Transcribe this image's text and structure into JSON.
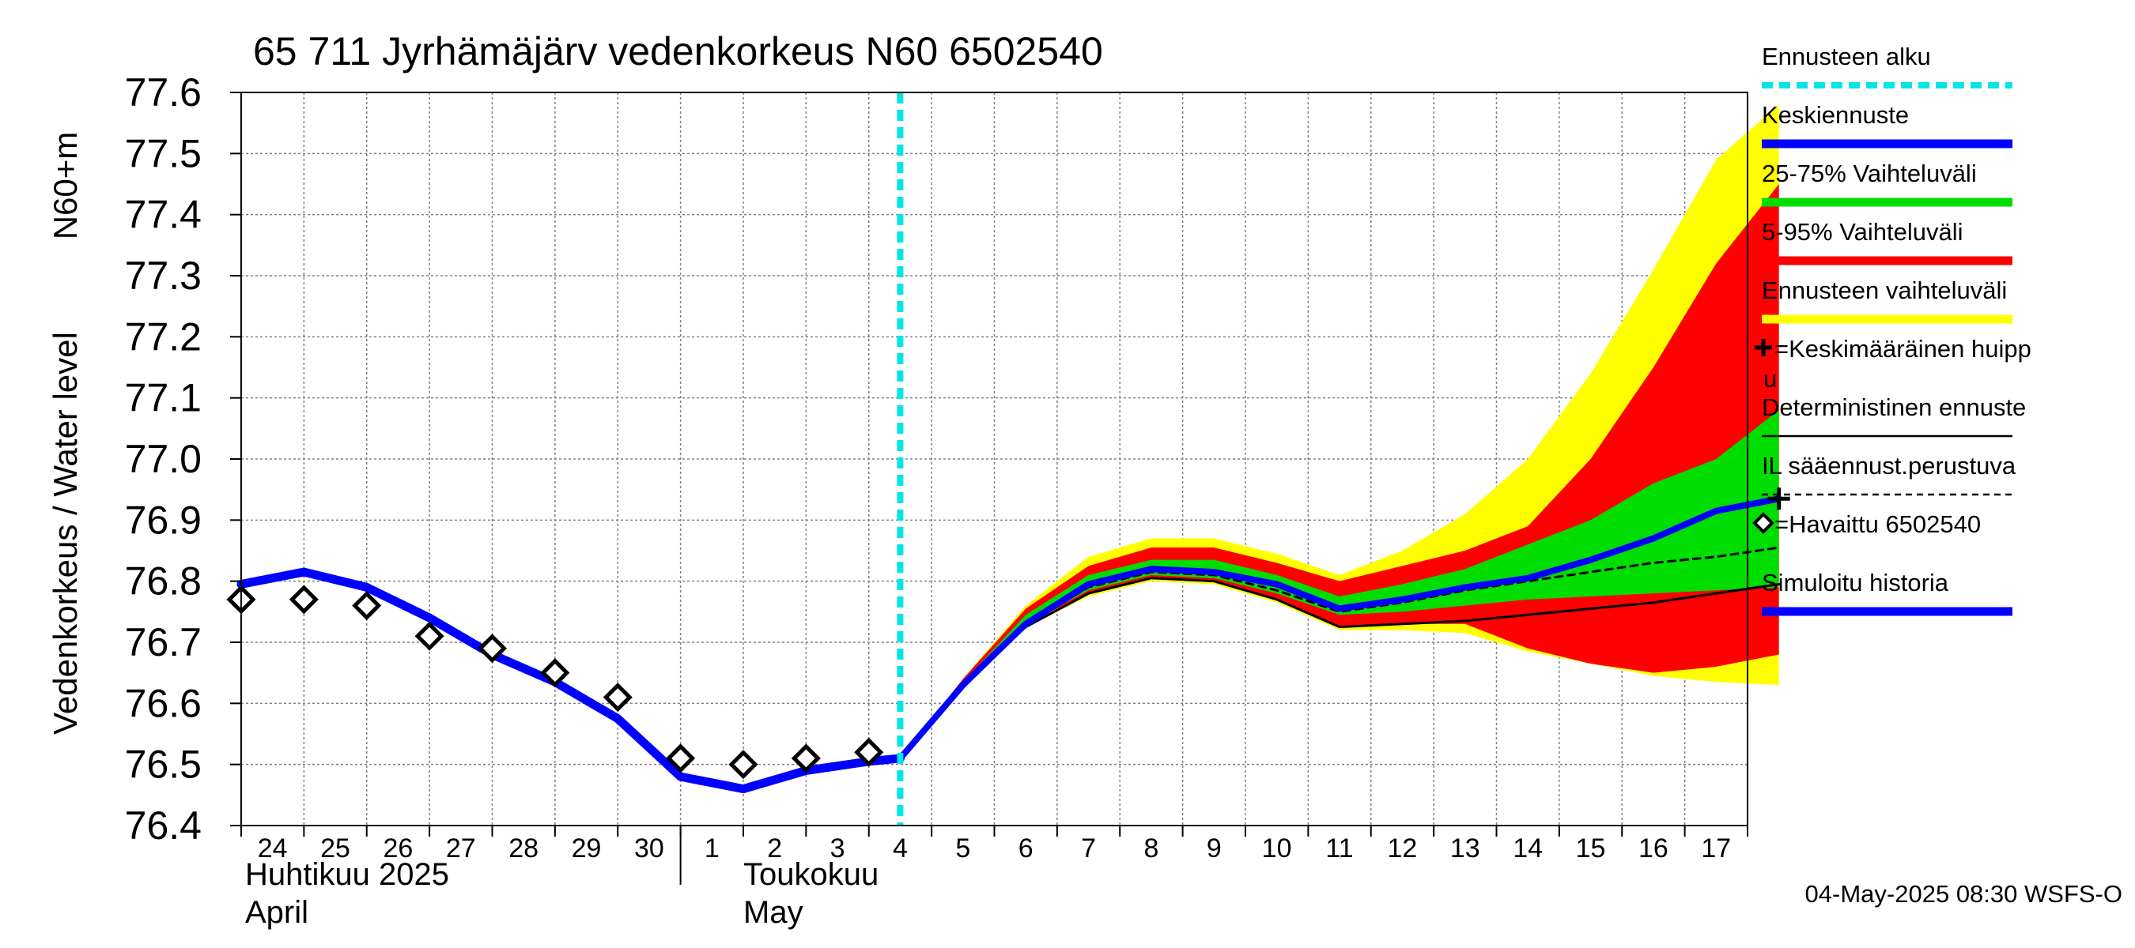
{
  "chart_data": {
    "type": "line",
    "title": "65 711 Jyrhämäjärv vedenkorkeus N60 6502540",
    "ylabel_line1": "Vedenkorkeus / Water level",
    "ylabel_line2": "N60+m",
    "ylim": [
      76.4,
      77.6
    ],
    "yticks": [
      "76.4",
      "76.5",
      "76.6",
      "76.7",
      "76.8",
      "76.9",
      "77.0",
      "77.1",
      "77.2",
      "77.3",
      "77.4",
      "77.5",
      "77.6"
    ],
    "x_start_day": 24,
    "x_end_day": 48,
    "x_day_labels": [
      "24",
      "25",
      "26",
      "27",
      "28",
      "29",
      "30",
      "1",
      "2",
      "3",
      "4",
      "5",
      "6",
      "7",
      "8",
      "9",
      "10",
      "11",
      "12",
      "13",
      "14",
      "15",
      "16",
      "17"
    ],
    "months": [
      {
        "fi": "Huhtikuu  2025",
        "en": "April",
        "start_day": 24
      },
      {
        "fi": "Toukokuu",
        "en": "May",
        "start_day": 31
      }
    ],
    "forecast_start_day": 34.5,
    "series": [
      {
        "name": "Simuloitu historia",
        "x": [
          24,
          25,
          26,
          27,
          28,
          29,
          30,
          31,
          32,
          33,
          34,
          34.5
        ],
        "values": [
          76.795,
          76.815,
          76.79,
          76.74,
          76.68,
          76.635,
          76.575,
          76.48,
          76.46,
          76.49,
          76.505,
          76.51
        ]
      },
      {
        "name": "Keskiennuste",
        "x": [
          34.5,
          35.5,
          36.5,
          37.5,
          38.5,
          39.5,
          40.5,
          41.5,
          42.5,
          43.5,
          44.5,
          45.5,
          46.5,
          47.5,
          48.5
        ],
        "values": [
          76.51,
          76.63,
          76.73,
          76.795,
          76.82,
          76.815,
          76.795,
          76.755,
          76.77,
          76.79,
          76.805,
          76.835,
          76.87,
          76.915,
          76.935
        ]
      },
      {
        "name": "Deterministinen ennuste",
        "x": [
          34.5,
          35.5,
          36.5,
          37.5,
          38.5,
          39.5,
          40.5,
          41.5,
          42.5,
          43.5,
          44.5,
          45.5,
          46.5,
          47.5,
          48.5
        ],
        "values": [
          76.51,
          76.63,
          76.725,
          76.78,
          76.805,
          76.8,
          76.77,
          76.725,
          76.73,
          76.735,
          76.745,
          76.755,
          76.765,
          76.78,
          76.795
        ]
      },
      {
        "name": "IL sääennust.perustuva",
        "x": [
          34.5,
          35.5,
          36.5,
          37.5,
          38.5,
          39.5,
          40.5,
          41.5,
          42.5,
          43.5,
          44.5,
          45.5,
          46.5,
          47.5,
          48.5
        ],
        "values": [
          76.51,
          76.63,
          76.73,
          76.79,
          76.815,
          76.81,
          76.785,
          76.75,
          76.765,
          76.785,
          76.8,
          76.815,
          76.83,
          76.84,
          76.855
        ]
      },
      {
        "name": "Havaittu 6502540",
        "x": [
          24,
          25,
          26,
          27,
          28,
          29,
          30,
          31,
          32,
          33,
          34
        ],
        "values": [
          76.77,
          76.77,
          76.76,
          76.71,
          76.69,
          76.65,
          76.61,
          76.51,
          76.5,
          76.51,
          76.52
        ]
      }
    ],
    "bands": [
      {
        "name": "Ennusteen vaihteluväli",
        "x": [
          34.5,
          35.5,
          36.5,
          37.5,
          38.5,
          39.5,
          40.5,
          41.5,
          42.5,
          43.5,
          44.5,
          45.5,
          46.5,
          47.5,
          48.5
        ],
        "lower": [
          76.51,
          76.63,
          76.725,
          76.775,
          76.8,
          76.795,
          76.765,
          76.72,
          76.72,
          76.715,
          76.685,
          76.665,
          76.645,
          76.635,
          76.63
        ],
        "upper": [
          76.51,
          76.64,
          76.76,
          76.84,
          76.87,
          76.87,
          76.845,
          76.81,
          76.85,
          76.91,
          77.0,
          77.14,
          77.31,
          77.49,
          77.58
        ]
      },
      {
        "name": "5-95% Vaihteluväli",
        "x": [
          34.5,
          35.5,
          36.5,
          37.5,
          38.5,
          39.5,
          40.5,
          41.5,
          42.5,
          43.5,
          44.5,
          45.5,
          46.5,
          47.5,
          48.5
        ],
        "lower": [
          76.51,
          76.63,
          76.73,
          76.78,
          76.805,
          76.8,
          76.77,
          76.725,
          76.73,
          76.73,
          76.69,
          76.665,
          76.65,
          76.66,
          76.68
        ],
        "upper": [
          76.51,
          76.64,
          76.755,
          76.825,
          76.855,
          76.855,
          76.83,
          76.8,
          76.825,
          76.85,
          76.89,
          77.0,
          77.15,
          77.32,
          77.45
        ]
      },
      {
        "name": "25-75% Vaihteluväli",
        "x": [
          34.5,
          35.5,
          36.5,
          37.5,
          38.5,
          39.5,
          40.5,
          41.5,
          42.5,
          43.5,
          44.5,
          45.5,
          46.5,
          47.5,
          48.5
        ],
        "lower": [
          76.51,
          76.63,
          76.73,
          76.785,
          76.81,
          76.805,
          76.78,
          76.745,
          76.75,
          76.76,
          76.77,
          76.775,
          76.78,
          76.785,
          76.79
        ],
        "upper": [
          76.51,
          76.635,
          76.745,
          76.81,
          76.835,
          76.835,
          76.81,
          76.775,
          76.795,
          76.82,
          76.86,
          76.9,
          76.96,
          77.0,
          77.08
        ]
      }
    ],
    "legend": [
      {
        "label": "Ennusteen alku",
        "color": "#00e5e5",
        "style": "dashed-thick"
      },
      {
        "label": "Keskiennuste",
        "color": "#0000ff",
        "style": "thick"
      },
      {
        "label": "25-75% Vaihteluväli",
        "color": "#00dd00",
        "style": "thick"
      },
      {
        "label": "5-95% Vaihteluväli",
        "color": "#ff0000",
        "style": "thick"
      },
      {
        "label": "Ennusteen vaihteluväli",
        "color": "#ffff00",
        "style": "thick"
      },
      {
        "label": "=Keskimääräinen huipp",
        "label2": "u",
        "color": "#000000",
        "style": "plus"
      },
      {
        "label": "Deterministinen ennuste",
        "color": "#000000",
        "style": "thin"
      },
      {
        "label": "IL sääennust.perustuva",
        "color": "#000000",
        "style": "dashed-thin"
      },
      {
        "label": "=Havaittu 6502540",
        "color": "#000000",
        "style": "diamond"
      },
      {
        "label": "Simuloitu historia",
        "color": "#0000ff",
        "style": "thick"
      }
    ],
    "mean_peak": {
      "x": 48.5,
      "value": 76.935
    },
    "footer": "04-May-2025 08:30 WSFS-O"
  },
  "colors": {
    "forecast_start": "#00e5e5",
    "mean": "#0000ff",
    "band_25_75": "#00dd00",
    "band_5_95": "#ff0000",
    "band_full": "#ffff00",
    "grid": "#808080"
  }
}
